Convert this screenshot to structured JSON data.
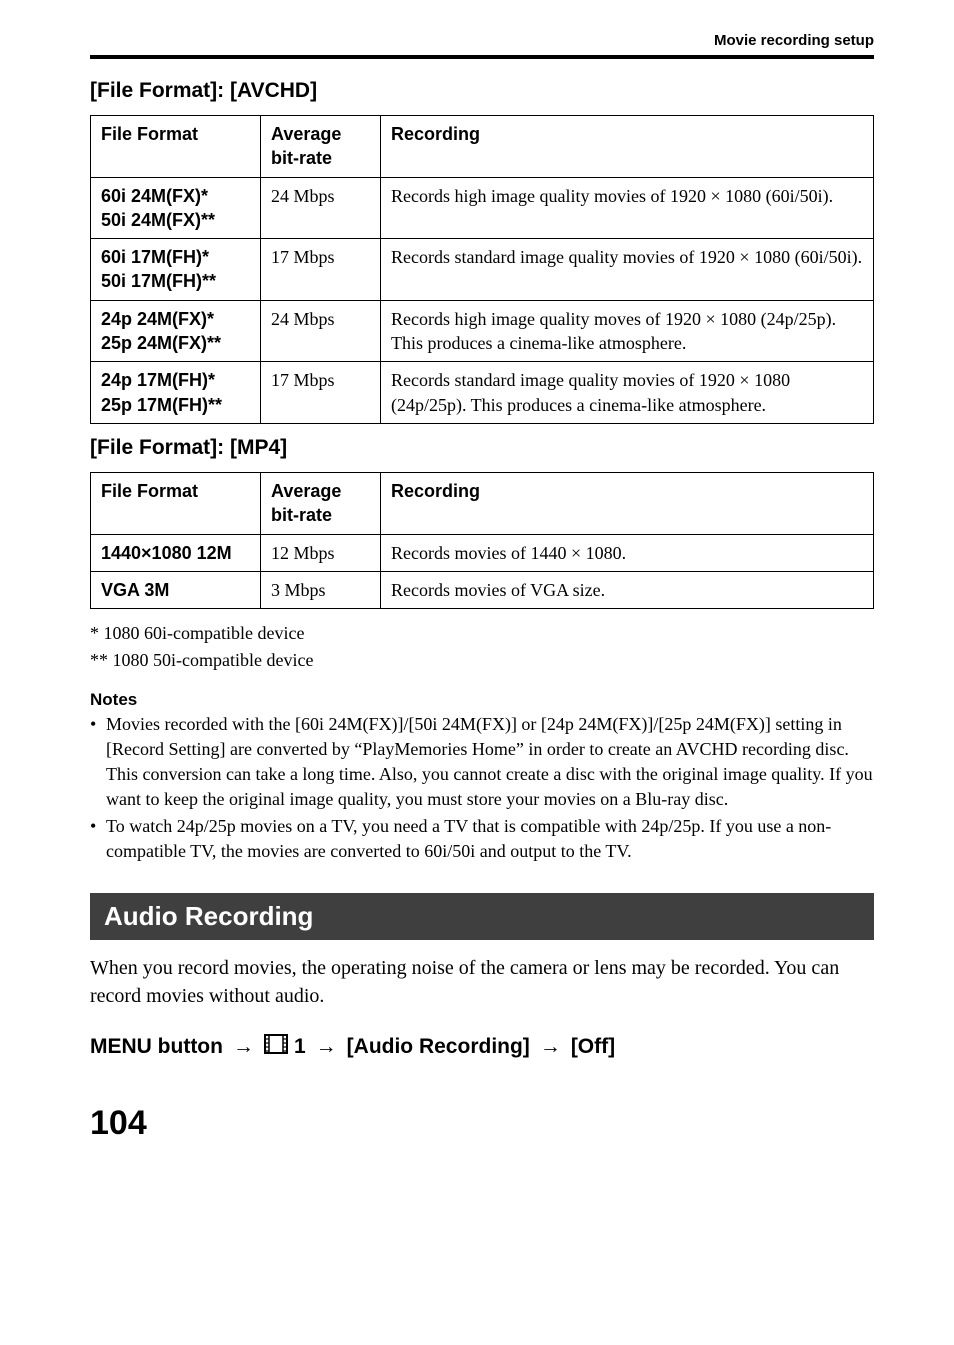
{
  "header": {
    "text": "Movie recording setup"
  },
  "section1": {
    "heading": "[File Format]: [AVCHD]",
    "columns": [
      "File Format",
      "Average bit-rate",
      "Recording"
    ],
    "rows": [
      {
        "ff": "60i 24M(FX)*\n50i 24M(FX)**",
        "rate": "24 Mbps",
        "rec": "Records high image quality movies of 1920 × 1080 (60i/50i)."
      },
      {
        "ff": "60i 17M(FH)*\n50i 17M(FH)**",
        "rate": "17 Mbps",
        "rec": "Records standard image quality movies of 1920 × 1080 (60i/50i)."
      },
      {
        "ff": "24p 24M(FX)*\n25p 24M(FX)**",
        "rate": "24 Mbps",
        "rec": "Records high image quality moves of 1920 × 1080 (24p/25p). This produces a cinema-like atmosphere."
      },
      {
        "ff": "24p 17M(FH)*\n25p 17M(FH)**",
        "rate": "17 Mbps",
        "rec": "Records standard image quality movies of 1920 × 1080 (24p/25p). This produces a cinema-like atmosphere."
      }
    ]
  },
  "section2": {
    "heading": "[File Format]: [MP4]",
    "columns": [
      "File Format",
      "Average bit-rate",
      "Recording"
    ],
    "rows": [
      {
        "ff": "1440×1080 12M",
        "rate": "12 Mbps",
        "rec": "Records movies of 1440 × 1080."
      },
      {
        "ff": "VGA 3M",
        "rate": "3 Mbps",
        "rec": "Records movies of VGA size."
      }
    ]
  },
  "footnotes": {
    "a": "*   1080 60i-compatible device",
    "b": "** 1080 50i-compatible device"
  },
  "notes": {
    "heading": "Notes",
    "items": [
      "Movies recorded with the [60i 24M(FX)]/[50i 24M(FX)] or [24p 24M(FX)]/[25p 24M(FX)] setting in [Record Setting] are converted by “PlayMemories Home” in order to create an AVCHD recording disc. This conversion can take a long time. Also, you cannot create a disc with the original image quality. If you want to keep the original image quality, you must store your movies on a Blu-ray disc.",
      "To watch 24p/25p movies on a TV, you need a TV that is compatible with 24p/25p. If you use a non-compatible TV, the movies are converted to 60i/50i and output to the TV."
    ]
  },
  "banner": {
    "title": "Audio Recording"
  },
  "bodyPara": "When you record movies, the operating noise of the camera or lens may be recorded. You can record movies without audio.",
  "menuPath": {
    "p1": "MENU button",
    "p2": "1",
    "p3": "[Audio Recording]",
    "p4": "[Off]"
  },
  "pageNum": "104",
  "icons": {
    "arrow": "→"
  },
  "style": {
    "bannerBg": "#3f3f3f",
    "bannerFg": "#ffffff"
  }
}
